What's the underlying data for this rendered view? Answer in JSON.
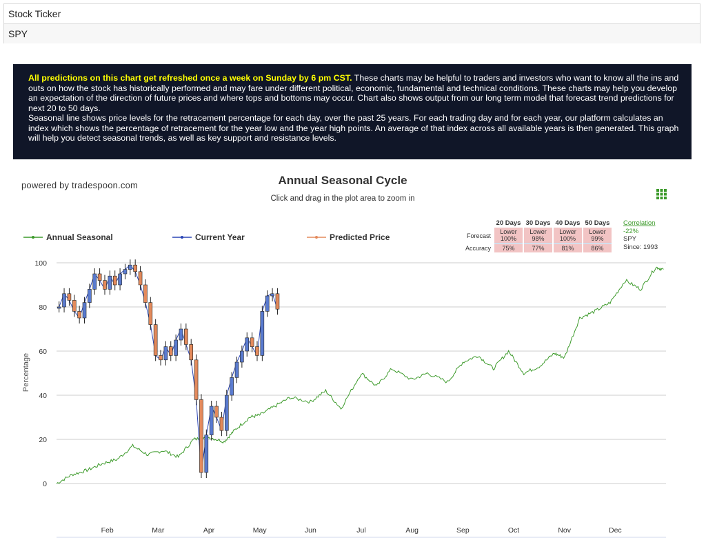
{
  "ticker": {
    "label": "Stock Ticker",
    "value": "SPY"
  },
  "info": {
    "highlight": "All predictions on this chart get refreshed once a week on Sunday by 6 pm CST.",
    "text1": " These charts may be helpful to traders and investors who want to know all the ins and outs on how the stock has historically performed and may fare under different political, economic, fundamental and technical conditions. These charts may help you develop an expectation of the direction of future prices and where tops and bottoms may occur. Chart also shows output from our long term model that forecast trend predictions for next 20 to 50 days.",
    "text2": "Seasonal line shows price levels for the retracement percentage for each day, over the past 25 years. For each trading day and for each year, our platform calculates an index which shows the percentage of retracement for the year low and the year high points. An average of that index across all available years is then generated. This graph will help you detect seasonal trends, as well as key support and resistance levels."
  },
  "powered_by": "powered by tradespoon.com",
  "forecast": {
    "label_forecast": "Forecast",
    "label_accuracy": "Accuracy",
    "columns": [
      {
        "header": "20 Days",
        "line1": "Lower",
        "line2": "100%",
        "accuracy": "75%"
      },
      {
        "header": "30 Days",
        "line1": "Lower",
        "line2": "98%",
        "accuracy": "77%"
      },
      {
        "header": "40 Days",
        "line1": "Lower",
        "line2": "100%",
        "accuracy": "81%"
      },
      {
        "header": "50 Days",
        "line1": "Lower",
        "line2": "99%",
        "accuracy": "86%"
      }
    ],
    "correlation": {
      "title": "Correlation",
      "value": "-22%",
      "symbol": "SPY",
      "since": "Since: 1993"
    }
  },
  "colors": {
    "seasonal": "#3c9a2a",
    "current": "#2a45b5",
    "predicted": "#e38a5c",
    "panel_bg": "#101628",
    "highlight": "#ffff00"
  },
  "chart_data": {
    "type": "line",
    "title": "Annual Seasonal Cycle",
    "subtitle": "Click and drag in the plot area to zoom in",
    "ylabel": "Percentage",
    "ylim": [
      0,
      100
    ],
    "yticks": [
      0,
      20,
      40,
      60,
      80,
      100
    ],
    "legend": [
      "Annual Seasonal",
      "Current Year",
      "Predicted Price"
    ],
    "months": [
      "Feb",
      "Mar",
      "Apr",
      "May",
      "Jun",
      "Jul",
      "Aug",
      "Sep",
      "Oct",
      "Nov",
      "Dec"
    ],
    "month_positions": [
      1,
      2,
      3,
      4,
      5,
      6,
      7,
      8,
      9,
      10,
      11
    ],
    "seasonal": {
      "name": "Annual Seasonal",
      "x": [
        0,
        0.3,
        0.6,
        0.9,
        1.2,
        1.5,
        1.8,
        2.1,
        2.4,
        2.7,
        3.0,
        3.3,
        3.5,
        3.8,
        4.0,
        4.3,
        4.6,
        5.0,
        5.3,
        5.6,
        6.0,
        6.3,
        6.6,
        7.0,
        7.3,
        7.7,
        8.0,
        8.3,
        8.6,
        8.9,
        9.2,
        9.5,
        9.8,
        10.0,
        10.3,
        10.6,
        10.9,
        11.2,
        11.5,
        11.8,
        11.95
      ],
      "y": [
        0,
        4,
        6,
        9,
        11,
        17,
        13,
        15,
        12,
        20,
        21,
        19,
        24,
        30,
        31,
        35,
        39,
        37,
        42,
        34,
        50,
        44,
        52,
        47,
        50,
        46,
        55,
        58,
        52,
        60,
        50,
        53,
        59,
        57,
        75,
        78,
        82,
        92,
        88,
        98,
        97
      ]
    },
    "current_year": {
      "name": "Current Year",
      "x": [
        0.05,
        0.15,
        0.25,
        0.35,
        0.45,
        0.55,
        0.65,
        0.75,
        0.85,
        0.95,
        1.05,
        1.15,
        1.25,
        1.35,
        1.45,
        1.55,
        1.65,
        1.75,
        1.85,
        1.95,
        2.05,
        2.15,
        2.25,
        2.35,
        2.45,
        2.55,
        2.65,
        2.75,
        2.85,
        2.95,
        3.05,
        3.15,
        3.25,
        3.35,
        3.45,
        3.55,
        3.65,
        3.75,
        3.85,
        3.95,
        4.05,
        4.15,
        4.25,
        4.35
      ],
      "y": [
        80,
        86,
        83,
        78,
        75,
        82,
        88,
        95,
        92,
        88,
        94,
        90,
        95,
        97,
        99,
        96,
        90,
        82,
        72,
        58,
        56,
        62,
        58,
        65,
        70,
        63,
        56,
        38,
        5,
        22,
        35,
        30,
        24,
        40,
        48,
        55,
        60,
        66,
        62,
        58,
        78,
        85,
        86,
        79
      ]
    }
  }
}
